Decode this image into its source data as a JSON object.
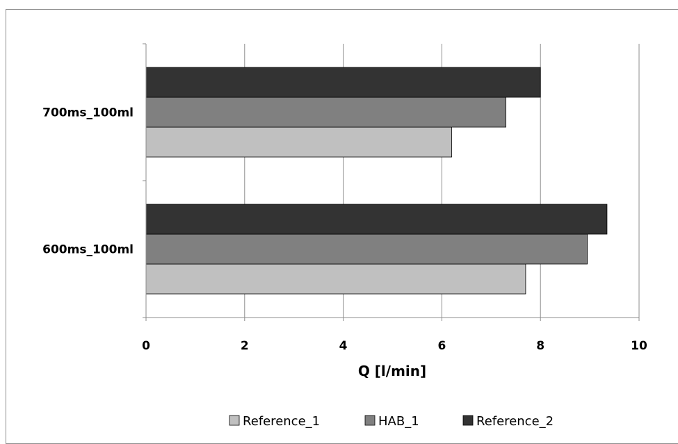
{
  "chart_data": {
    "type": "bar",
    "orientation": "horizontal",
    "categories": [
      "600ms_100ml",
      "700ms_100ml"
    ],
    "series": [
      {
        "name": "Reference_1",
        "values": [
          7.7,
          6.2
        ],
        "color": "#c0c0c0"
      },
      {
        "name": "HAB_1",
        "values": [
          8.95,
          7.3
        ],
        "color": "#808080"
      },
      {
        "name": "Reference_2",
        "values": [
          9.35,
          8.0
        ],
        "color": "#333333"
      }
    ],
    "xlabel": "Q [l/min]",
    "ylabel": "",
    "xlim": [
      0,
      10
    ],
    "xticks": [
      0,
      2,
      4,
      6,
      8,
      10
    ],
    "xtick_labels": [
      "0",
      "2",
      "4",
      "6",
      "8",
      "10"
    ],
    "grid": "vertical",
    "legend": "bottom"
  }
}
